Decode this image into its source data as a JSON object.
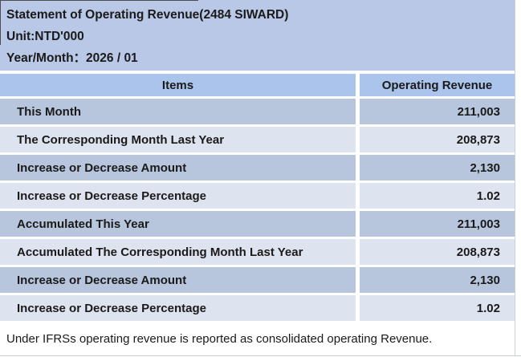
{
  "page": {
    "title": "Statement of Operating Revenue(2484 SIWARD)",
    "unit": "Unit:NTD'000",
    "year_month": "Year/Month：2026 / 01"
  },
  "table": {
    "headers": [
      "Items",
      "Operating Revenue"
    ],
    "rows": [
      {
        "item": "This Month",
        "value": "211,003"
      },
      {
        "item": "The Corresponding Month Last Year",
        "value": "208,873"
      },
      {
        "item": "Increase or Decrease Amount",
        "value": "2,130"
      },
      {
        "item": "Increase or Decrease Percentage",
        "value": "1.02"
      },
      {
        "item": "Accumulated This Year",
        "value": "211,003"
      },
      {
        "item": "Accumulated The Corresponding Month Last Year",
        "value": "208,873"
      },
      {
        "item": "Increase or Decrease Amount",
        "value": "2,130"
      },
      {
        "item": "Increase or Decrease Percentage",
        "value": "1.02"
      }
    ]
  },
  "footer": {
    "note": "Under IFRSs operating revenue is reported as consolidated operating Revenue."
  },
  "colors": {
    "title_bg": "#b8c8e6",
    "header_bg": "#aac4ec",
    "row_dark": "#b7c6dd",
    "row_light": "#dde3ef",
    "footer_bg": "#ffffff",
    "text": "#1a1a1a"
  }
}
